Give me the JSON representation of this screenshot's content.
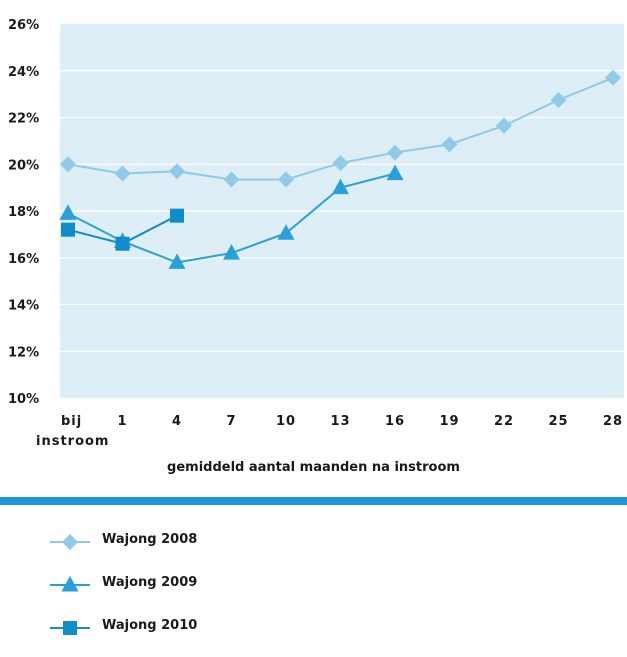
{
  "colors": {
    "plot_bg": "#ddeef7",
    "grid": "#ffffff",
    "divider": "#1a96d4"
  },
  "chart_data": {
    "type": "line",
    "categories": [
      "bij instroom",
      "1",
      "4",
      "7",
      "10",
      "13",
      "16",
      "19",
      "22",
      "25",
      "28"
    ],
    "xlabel": "gemiddeld aantal maanden na instroom",
    "ylabel": "",
    "ylim": [
      10,
      26
    ],
    "yticks": [
      "10%",
      "12%",
      "14%",
      "16%",
      "18%",
      "20%",
      "22%",
      "24%",
      "26%"
    ],
    "grid": true,
    "legend_position": "bottom",
    "series": [
      {
        "name": "Wajong 2008",
        "marker": "diamond",
        "color": "#8fcae8",
        "values": [
          20.0,
          19.6,
          19.7,
          19.35,
          19.35,
          20.05,
          20.5,
          20.85,
          21.65,
          22.75,
          23.7
        ]
      },
      {
        "name": "Wajong 2009",
        "marker": "triangle",
        "color": "#2aa0d8",
        "values": [
          17.9,
          16.7,
          15.8,
          16.2,
          17.05,
          19.0,
          19.6,
          null,
          null,
          null,
          null
        ]
      },
      {
        "name": "Wajong 2010",
        "marker": "square",
        "color": "#0e8ccc",
        "values": [
          17.2,
          16.6,
          17.8,
          null,
          null,
          null,
          null,
          null,
          null,
          null,
          null
        ]
      }
    ]
  }
}
